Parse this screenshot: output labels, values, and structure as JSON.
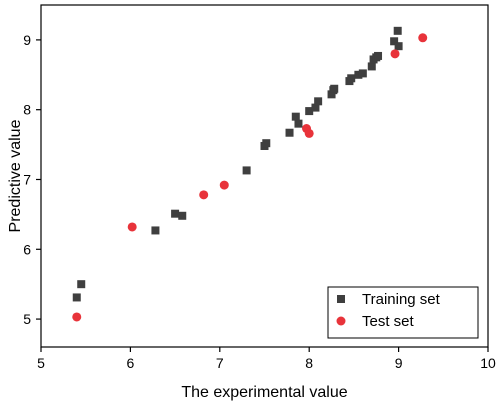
{
  "chart_data": {
    "type": "scatter",
    "title": "",
    "xlabel": "The experimental value",
    "ylabel": "Predictive value",
    "xlim": [
      5,
      10
    ],
    "ylim": [
      4.6,
      9.5
    ],
    "xticks": [
      "5",
      "6",
      "7",
      "8",
      "9",
      "10"
    ],
    "yticks": [
      "5",
      "6",
      "7",
      "8",
      "9"
    ],
    "grid": false,
    "legend": "bottom-right",
    "series": [
      {
        "name": "Training set",
        "marker": "square",
        "color": "#3f3f3f",
        "points": [
          [
            5.4,
            5.31
          ],
          [
            5.45,
            5.5
          ],
          [
            6.28,
            6.27
          ],
          [
            6.5,
            6.51
          ],
          [
            6.58,
            6.48
          ],
          [
            7.3,
            7.13
          ],
          [
            7.5,
            7.48
          ],
          [
            7.52,
            7.52
          ],
          [
            7.78,
            7.67
          ],
          [
            7.85,
            7.9
          ],
          [
            7.88,
            7.8
          ],
          [
            8.0,
            7.98
          ],
          [
            8.07,
            8.03
          ],
          [
            8.1,
            8.12
          ],
          [
            8.25,
            8.22
          ],
          [
            8.27,
            8.28
          ],
          [
            8.28,
            8.3
          ],
          [
            8.45,
            8.41
          ],
          [
            8.47,
            8.45
          ],
          [
            8.55,
            8.5
          ],
          [
            8.6,
            8.52
          ],
          [
            8.7,
            8.62
          ],
          [
            8.72,
            8.72
          ],
          [
            8.75,
            8.75
          ],
          [
            8.77,
            8.77
          ],
          [
            8.95,
            8.98
          ],
          [
            8.99,
            9.13
          ],
          [
            9.0,
            8.91
          ]
        ]
      },
      {
        "name": "Test set",
        "marker": "circle",
        "color": "#e8333a",
        "points": [
          [
            5.4,
            5.03
          ],
          [
            6.02,
            6.32
          ],
          [
            6.82,
            6.78
          ],
          [
            7.05,
            6.92
          ],
          [
            7.97,
            7.73
          ],
          [
            8.0,
            7.66
          ],
          [
            8.96,
            8.8
          ],
          [
            9.27,
            9.03
          ]
        ]
      }
    ]
  }
}
